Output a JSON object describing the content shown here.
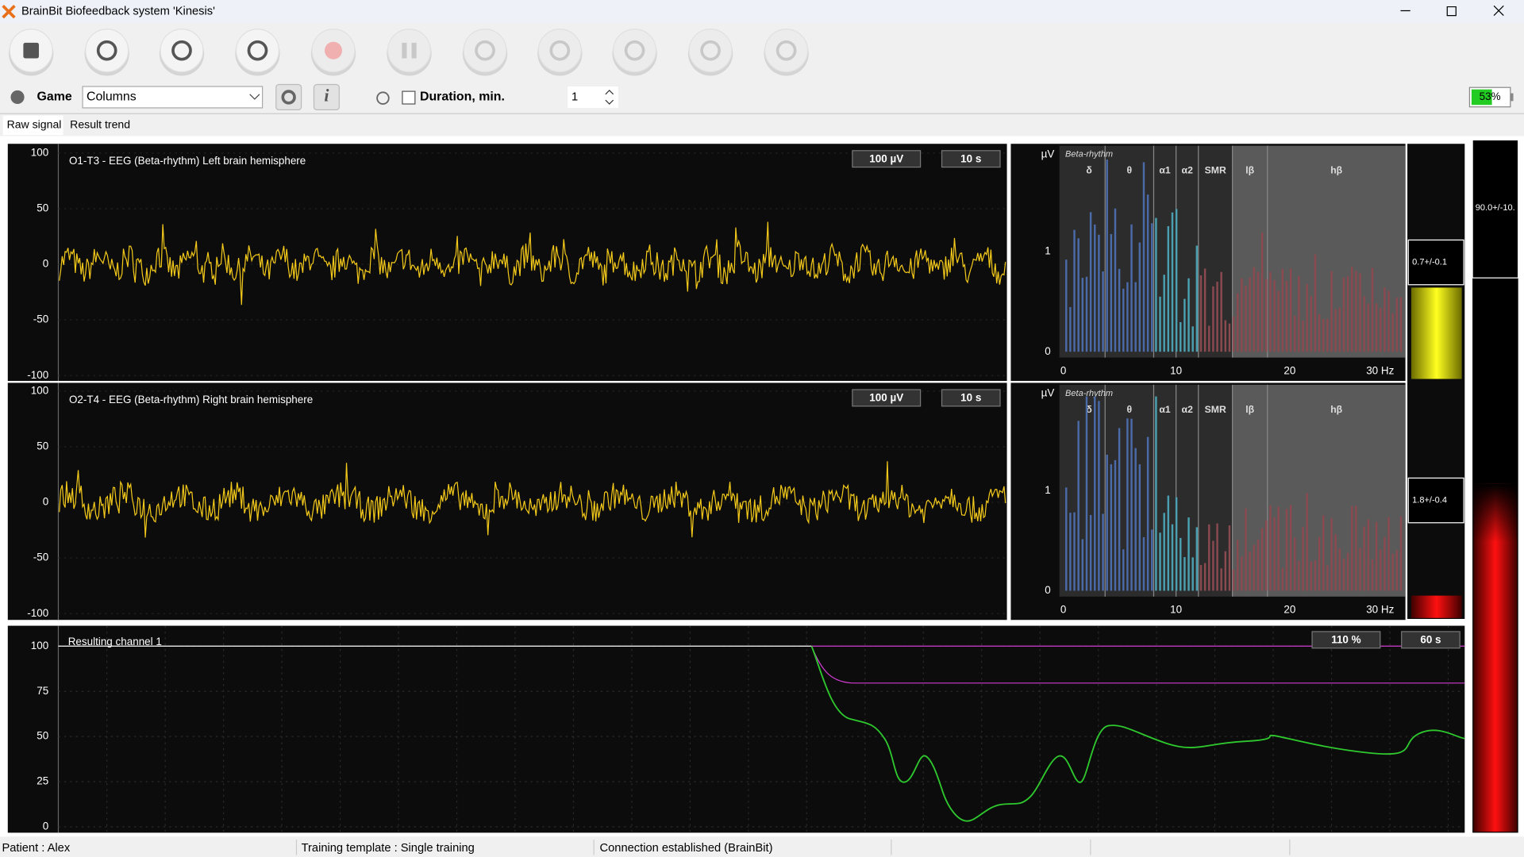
{
  "window": {
    "title": "BrainBit Biofeedback system 'Kinesis'"
  },
  "toolbar": {
    "game_label": "Game",
    "game_value": "Columns",
    "duration_label": "Duration, min.",
    "duration_value": "1",
    "battery": "53%"
  },
  "tabs": [
    "Raw signal",
    "Result trend"
  ],
  "eeg_panels": [
    {
      "title": "O1-T3 - EEG (Beta-rhythm) Left brain hemisphere",
      "scale": "100 µV",
      "time": "10 s",
      "yticks": [
        100,
        50,
        0,
        -50,
        -100
      ]
    },
    {
      "title": "O2-T4 - EEG (Beta-rhythm) Right brain hemisphere",
      "scale": "100 µV",
      "time": "10 s",
      "yticks": [
        100,
        50,
        0,
        -50,
        -100
      ]
    }
  ],
  "spectrum_panels": [
    {
      "unit": "µV",
      "rhythm": "Beta-rhythm",
      "bands": [
        "δ",
        "θ",
        "α1",
        "α2",
        "SMR",
        "lβ",
        "hβ"
      ],
      "yticks": [
        1,
        0
      ],
      "xticks": [
        "0",
        "10",
        "20",
        "30 Hz"
      ]
    },
    {
      "unit": "µV",
      "rhythm": "Beta-rhythm",
      "bands": [
        "δ",
        "θ",
        "α1",
        "α2",
        "SMR",
        "lβ",
        "hβ"
      ],
      "yticks": [
        1,
        0
      ],
      "xticks": [
        "0",
        "10",
        "20",
        "30 Hz"
      ]
    }
  ],
  "indicators": [
    "0.7+/-0.1",
    "1.8+/-0.4",
    "90.0+/-10."
  ],
  "result_panel": {
    "title": "Resulting channel 1",
    "scale": "110 %",
    "time": "60 s",
    "yticks": [
      100,
      75,
      50,
      25,
      0
    ]
  },
  "status_bar": [
    "Patient : Alex",
    "Training template : Single training",
    "Connection established (BrainBit)"
  ]
}
